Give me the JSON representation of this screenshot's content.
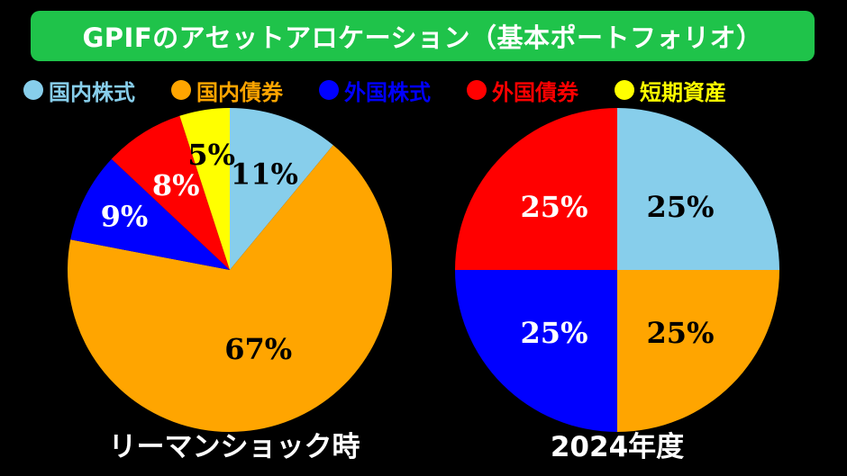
{
  "title": "GPIFのアセットアロケーション（基本ポートフォリオ）",
  "legend": [
    {
      "label": "国内株式",
      "color": "#87ceeb"
    },
    {
      "label": "国内債券",
      "color": "#ffa500"
    },
    {
      "label": "外国株式",
      "color": "#0000ff"
    },
    {
      "label": "外国債券",
      "color": "#ff0000"
    },
    {
      "label": "短期資産",
      "color": "#ffff00"
    }
  ],
  "chart_data": [
    {
      "type": "pie",
      "title": "リーマンショック時",
      "categories": [
        "国内株式",
        "国内債券",
        "外国株式",
        "外国債券",
        "短期資産"
      ],
      "values": [
        11,
        67,
        9,
        8,
        5
      ],
      "labels": [
        "11%",
        "67%",
        "9%",
        "8%",
        "5%"
      ],
      "colors": [
        "#87ceeb",
        "#ffa500",
        "#0000ff",
        "#ff0000",
        "#ffff00"
      ],
      "label_colors": [
        "#000000",
        "#000000",
        "#ffffff",
        "#ffffff",
        "#000000"
      ],
      "start": "12 o'clock",
      "direction": "clockwise",
      "legend_position": "top"
    },
    {
      "type": "pie",
      "title": "2024年度",
      "categories": [
        "国内株式",
        "国内債券",
        "外国株式",
        "外国債券"
      ],
      "values": [
        25,
        25,
        25,
        25
      ],
      "labels": [
        "25%",
        "25%",
        "25%",
        "25%"
      ],
      "colors": [
        "#87ceeb",
        "#ffa500",
        "#0000ff",
        "#ff0000"
      ],
      "label_colors": [
        "#000000",
        "#000000",
        "#ffffff",
        "#ffffff"
      ],
      "start": "12 o'clock",
      "direction": "clockwise",
      "legend_position": "top"
    }
  ]
}
